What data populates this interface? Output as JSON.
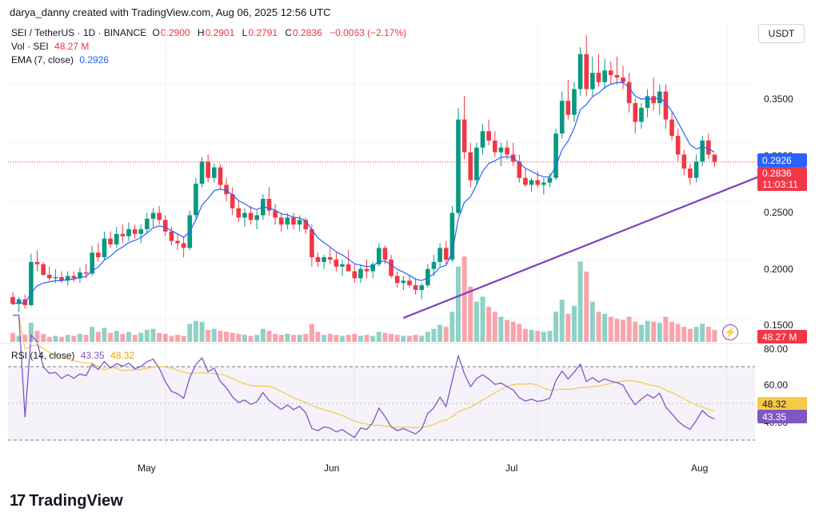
{
  "credit": "darya_danny created with TradingView.com, Aug 06, 2025 12:56 UTC",
  "legend": {
    "symbol": "SEI / TetherUS · 1D · BINANCE",
    "o_label": "O",
    "o_value": "0.2900",
    "h_label": "H",
    "h_value": "0.2901",
    "l_label": "L",
    "l_value": "0.2791",
    "c_label": "C",
    "c_value": "0.2836",
    "change": "−0.0063 (−2.17%)",
    "vol_label": "Vol · SEI",
    "vol_value": "48.27 M",
    "ema_label": "EMA (7, close)",
    "ema_value": "0.2926"
  },
  "currency": "USDT",
  "price_axis": [
    "0.3500",
    "0.3000",
    "0.2500",
    "0.2000",
    "0.1500"
  ],
  "tags": {
    "ema": "0.2926",
    "price": "0.2836",
    "countdown": "11:03:11",
    "volume": "48.27 M"
  },
  "rsi": {
    "label": "RSI (14, close)",
    "value": "43.35",
    "ma_value": "48.32",
    "axis": [
      "80.00",
      "60.00",
      "40.00"
    ],
    "tag_value": "43.35",
    "tag_ma": "48.32"
  },
  "x_axis": [
    "May",
    "Jun",
    "Jul",
    "Aug"
  ],
  "colors": {
    "up": "#089981",
    "down": "#f23645",
    "ema": "#2962ff",
    "trend": "#7e3fbf",
    "rsi": "#7e57c2",
    "rsi_ma": "#f7c948"
  },
  "logo": {
    "icon": "tradingview-logo-icon",
    "text": "TradingView"
  },
  "chart_data": {
    "type": "candlestick",
    "symbol": "SEI / TetherUS",
    "interval": "1D",
    "ylim": [
      0.135,
      0.395
    ],
    "start_date": "2025-04-06",
    "candles": [
      [
        0.168,
        0.172,
        0.161,
        0.162
      ],
      [
        0.162,
        0.168,
        0.155,
        0.166
      ],
      [
        0.166,
        0.17,
        0.158,
        0.161
      ],
      [
        0.161,
        0.205,
        0.16,
        0.198
      ],
      [
        0.198,
        0.208,
        0.19,
        0.196
      ],
      [
        0.196,
        0.198,
        0.186,
        0.187
      ],
      [
        0.187,
        0.194,
        0.182,
        0.184
      ],
      [
        0.184,
        0.192,
        0.18,
        0.185
      ],
      [
        0.185,
        0.19,
        0.18,
        0.182
      ],
      [
        0.182,
        0.19,
        0.178,
        0.186
      ],
      [
        0.186,
        0.19,
        0.181,
        0.184
      ],
      [
        0.184,
        0.193,
        0.18,
        0.189
      ],
      [
        0.189,
        0.196,
        0.184,
        0.188
      ],
      [
        0.188,
        0.212,
        0.186,
        0.206
      ],
      [
        0.206,
        0.214,
        0.198,
        0.202
      ],
      [
        0.202,
        0.224,
        0.2,
        0.218
      ],
      [
        0.218,
        0.224,
        0.21,
        0.213
      ],
      [
        0.213,
        0.228,
        0.21,
        0.222
      ],
      [
        0.222,
        0.23,
        0.214,
        0.22
      ],
      [
        0.22,
        0.232,
        0.216,
        0.226
      ],
      [
        0.226,
        0.23,
        0.218,
        0.222
      ],
      [
        0.222,
        0.23,
        0.214,
        0.226
      ],
      [
        0.226,
        0.24,
        0.222,
        0.235
      ],
      [
        0.235,
        0.244,
        0.228,
        0.24
      ],
      [
        0.24,
        0.246,
        0.23,
        0.234
      ],
      [
        0.234,
        0.238,
        0.22,
        0.224
      ],
      [
        0.224,
        0.228,
        0.212,
        0.216
      ],
      [
        0.216,
        0.222,
        0.208,
        0.214
      ],
      [
        0.214,
        0.22,
        0.202,
        0.21
      ],
      [
        0.21,
        0.242,
        0.208,
        0.238
      ],
      [
        0.238,
        0.27,
        0.235,
        0.265
      ],
      [
        0.265,
        0.288,
        0.262,
        0.284
      ],
      [
        0.284,
        0.29,
        0.266,
        0.27
      ],
      [
        0.27,
        0.282,
        0.266,
        0.279
      ],
      [
        0.279,
        0.282,
        0.26,
        0.264
      ],
      [
        0.264,
        0.27,
        0.25,
        0.256
      ],
      [
        0.256,
        0.262,
        0.238,
        0.244
      ],
      [
        0.244,
        0.25,
        0.232,
        0.236
      ],
      [
        0.236,
        0.244,
        0.228,
        0.24
      ],
      [
        0.24,
        0.246,
        0.23,
        0.234
      ],
      [
        0.234,
        0.242,
        0.226,
        0.238
      ],
      [
        0.238,
        0.256,
        0.234,
        0.252
      ],
      [
        0.252,
        0.262,
        0.238,
        0.242
      ],
      [
        0.242,
        0.248,
        0.23,
        0.236
      ],
      [
        0.236,
        0.24,
        0.224,
        0.23
      ],
      [
        0.23,
        0.24,
        0.226,
        0.236
      ],
      [
        0.236,
        0.24,
        0.226,
        0.23
      ],
      [
        0.23,
        0.238,
        0.224,
        0.234
      ],
      [
        0.234,
        0.236,
        0.222,
        0.226
      ],
      [
        0.226,
        0.23,
        0.194,
        0.202
      ],
      [
        0.202,
        0.206,
        0.194,
        0.198
      ],
      [
        0.198,
        0.204,
        0.192,
        0.202
      ],
      [
        0.202,
        0.21,
        0.196,
        0.2
      ],
      [
        0.2,
        0.206,
        0.19,
        0.194
      ],
      [
        0.194,
        0.2,
        0.186,
        0.196
      ],
      [
        0.196,
        0.208,
        0.192,
        0.19
      ],
      [
        0.19,
        0.196,
        0.18,
        0.184
      ],
      [
        0.184,
        0.196,
        0.18,
        0.192
      ],
      [
        0.192,
        0.2,
        0.184,
        0.19
      ],
      [
        0.19,
        0.198,
        0.184,
        0.196
      ],
      [
        0.196,
        0.214,
        0.194,
        0.21
      ],
      [
        0.21,
        0.212,
        0.196,
        0.2
      ],
      [
        0.2,
        0.204,
        0.184,
        0.186
      ],
      [
        0.186,
        0.19,
        0.176,
        0.18
      ],
      [
        0.18,
        0.186,
        0.174,
        0.182
      ],
      [
        0.182,
        0.186,
        0.176,
        0.178
      ],
      [
        0.178,
        0.184,
        0.17,
        0.174
      ],
      [
        0.174,
        0.18,
        0.166,
        0.178
      ],
      [
        0.178,
        0.196,
        0.176,
        0.192
      ],
      [
        0.192,
        0.204,
        0.186,
        0.198
      ],
      [
        0.198,
        0.214,
        0.194,
        0.21
      ],
      [
        0.21,
        0.216,
        0.196,
        0.2
      ],
      [
        0.2,
        0.246,
        0.198,
        0.24
      ],
      [
        0.24,
        0.33,
        0.238,
        0.32
      ],
      [
        0.32,
        0.34,
        0.286,
        0.292
      ],
      [
        0.292,
        0.3,
        0.262,
        0.268
      ],
      [
        0.268,
        0.3,
        0.264,
        0.296
      ],
      [
        0.296,
        0.316,
        0.29,
        0.31
      ],
      [
        0.31,
        0.32,
        0.298,
        0.302
      ],
      [
        0.302,
        0.31,
        0.288,
        0.292
      ],
      [
        0.292,
        0.3,
        0.28,
        0.296
      ],
      [
        0.296,
        0.302,
        0.286,
        0.29
      ],
      [
        0.29,
        0.3,
        0.28,
        0.284
      ],
      [
        0.284,
        0.29,
        0.266,
        0.27
      ],
      [
        0.27,
        0.278,
        0.262,
        0.264
      ],
      [
        0.264,
        0.27,
        0.258,
        0.268
      ],
      [
        0.268,
        0.276,
        0.262,
        0.264
      ],
      [
        0.264,
        0.27,
        0.256,
        0.266
      ],
      [
        0.266,
        0.274,
        0.262,
        0.27
      ],
      [
        0.27,
        0.312,
        0.268,
        0.308
      ],
      [
        0.308,
        0.344,
        0.304,
        0.336
      ],
      [
        0.336,
        0.354,
        0.32,
        0.324
      ],
      [
        0.324,
        0.352,
        0.318,
        0.346
      ],
      [
        0.346,
        0.382,
        0.34,
        0.376
      ],
      [
        0.376,
        0.392,
        0.34,
        0.346
      ],
      [
        0.346,
        0.374,
        0.34,
        0.36
      ],
      [
        0.36,
        0.376,
        0.348,
        0.352
      ],
      [
        0.352,
        0.372,
        0.346,
        0.362
      ],
      [
        0.362,
        0.37,
        0.35,
        0.358
      ],
      [
        0.358,
        0.374,
        0.35,
        0.356
      ],
      [
        0.356,
        0.366,
        0.346,
        0.352
      ],
      [
        0.352,
        0.36,
        0.326,
        0.334
      ],
      [
        0.334,
        0.338,
        0.308,
        0.318
      ],
      [
        0.318,
        0.334,
        0.312,
        0.33
      ],
      [
        0.33,
        0.346,
        0.322,
        0.34
      ],
      [
        0.34,
        0.356,
        0.328,
        0.334
      ],
      [
        0.334,
        0.35,
        0.324,
        0.344
      ],
      [
        0.344,
        0.35,
        0.312,
        0.32
      ],
      [
        0.32,
        0.326,
        0.302,
        0.306
      ],
      [
        0.306,
        0.312,
        0.284,
        0.29
      ],
      [
        0.29,
        0.294,
        0.272,
        0.278
      ],
      [
        0.278,
        0.282,
        0.264,
        0.27
      ],
      [
        0.27,
        0.29,
        0.266,
        0.284
      ],
      [
        0.284,
        0.306,
        0.28,
        0.302
      ],
      [
        0.302,
        0.308,
        0.286,
        0.29
      ],
      [
        0.29,
        0.2901,
        0.2791,
        0.2836
      ]
    ],
    "volume": [
      18,
      12,
      14,
      38,
      22,
      16,
      10,
      12,
      10,
      14,
      12,
      16,
      14,
      30,
      20,
      28,
      18,
      22,
      16,
      20,
      14,
      18,
      24,
      26,
      18,
      16,
      12,
      14,
      12,
      36,
      42,
      40,
      24,
      26,
      22,
      20,
      18,
      16,
      14,
      12,
      14,
      26,
      22,
      16,
      14,
      16,
      14,
      14,
      16,
      36,
      20,
      14,
      16,
      14,
      12,
      14,
      16,
      12,
      14,
      12,
      20,
      18,
      16,
      14,
      12,
      12,
      14,
      12,
      20,
      26,
      34,
      30,
      60,
      150,
      170,
      110,
      80,
      90,
      70,
      60,
      50,
      44,
      40,
      36,
      26,
      24,
      22,
      20,
      22,
      60,
      84,
      56,
      72,
      160,
      140,
      80,
      60,
      56,
      50,
      46,
      44,
      50,
      40,
      34,
      42,
      40,
      38,
      50,
      40,
      36,
      30,
      26,
      30,
      36,
      30,
      24
    ],
    "ema_period": 7,
    "trendline": [
      [
        "2025-06-09",
        0.15
      ],
      [
        "2025-08-12",
        0.283
      ]
    ],
    "rsi_period": 14,
    "rsi_bands": [
      70,
      30
    ],
    "rsi_ylim": [
      22,
      82
    ],
    "x_ticks": [
      {
        "label": "May",
        "date": "2025-05-01"
      },
      {
        "label": "Jun",
        "date": "2025-06-01"
      },
      {
        "label": "Jul",
        "date": "2025-07-01"
      },
      {
        "label": "Aug",
        "date": "2025-08-01"
      }
    ],
    "last": {
      "open": 0.29,
      "high": 0.2901,
      "low": 0.2791,
      "close": 0.2836,
      "ema": 0.2926,
      "rsi": 43.35,
      "rsi_ma": 48.32,
      "volume_m": 48.27
    }
  }
}
